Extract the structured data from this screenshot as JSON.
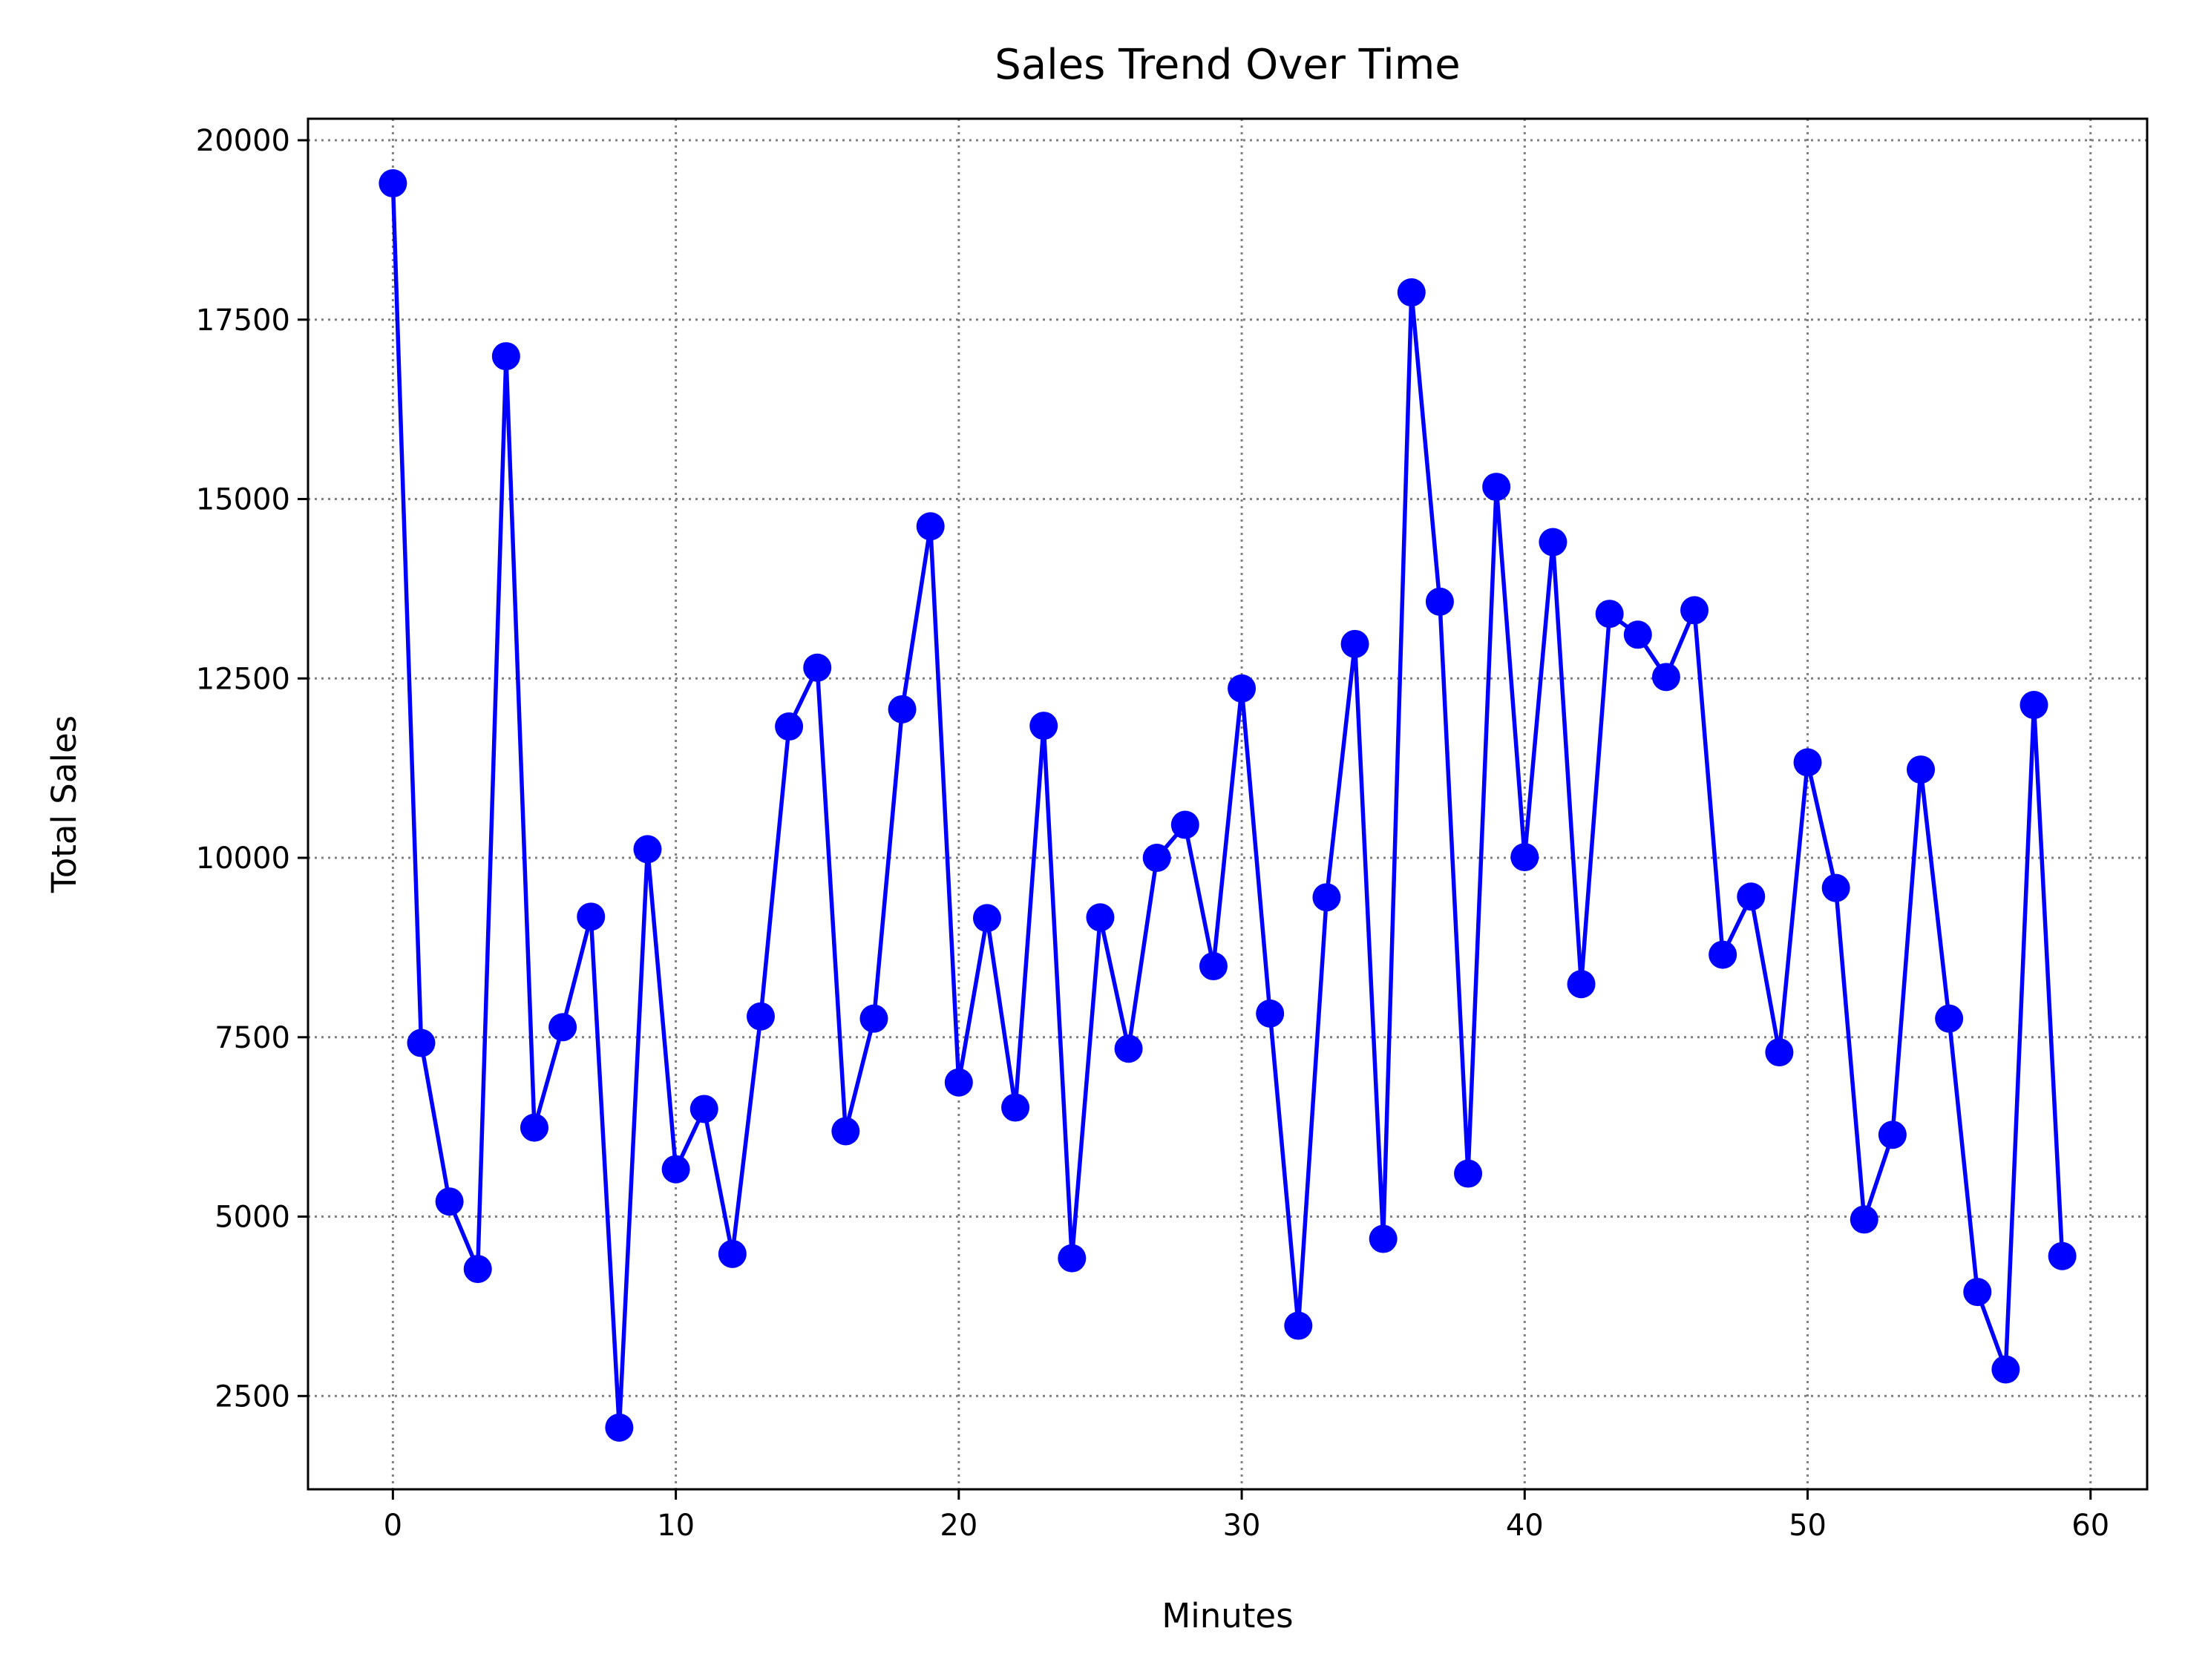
{
  "chart_data": {
    "type": "line",
    "title": "Sales Trend Over Time",
    "xlabel": "Minutes",
    "ylabel": "Total Sales",
    "xlim": [
      -3,
      62
    ],
    "ylim": [
      1200,
      20300
    ],
    "xticks": [
      0,
      10,
      20,
      30,
      40,
      50,
      60
    ],
    "yticks": [
      2500,
      5000,
      7500,
      10000,
      12500,
      15000,
      17500,
      20000
    ],
    "grid": true,
    "marker": "circle",
    "line_color": "#0000ff",
    "x": [
      0,
      1,
      2,
      3,
      4,
      5,
      6,
      7,
      8,
      9,
      10,
      11,
      12,
      13,
      14,
      15,
      16,
      17,
      18,
      19,
      20,
      21,
      22,
      23,
      24,
      25,
      26,
      27,
      28,
      29,
      30,
      31,
      32,
      33,
      34,
      35,
      36,
      37,
      38,
      39,
      40,
      41,
      42,
      43,
      44,
      45,
      46,
      47,
      48,
      49,
      50,
      51,
      52,
      53,
      54,
      55,
      56,
      57,
      58,
      59
    ],
    "y": [
      19400,
      7420,
      5210,
      4270,
      16990,
      6240,
      7640,
      9180,
      2060,
      10120,
      5660,
      6500,
      4480,
      7790,
      11830,
      12650,
      6190,
      7760,
      12070,
      14620,
      6870,
      9160,
      6520,
      11840,
      4420,
      9170,
      7340,
      10000,
      10460,
      8490,
      12360,
      7830,
      3480,
      9450,
      12980,
      4690,
      17880,
      13570,
      5600,
      15170,
      10010,
      14400,
      8240,
      13400,
      13110,
      12520,
      13450,
      8650,
      9460,
      7290,
      11330,
      9580,
      4960,
      6140,
      11230,
      7760,
      3950,
      2870,
      12130,
      4450
    ]
  }
}
